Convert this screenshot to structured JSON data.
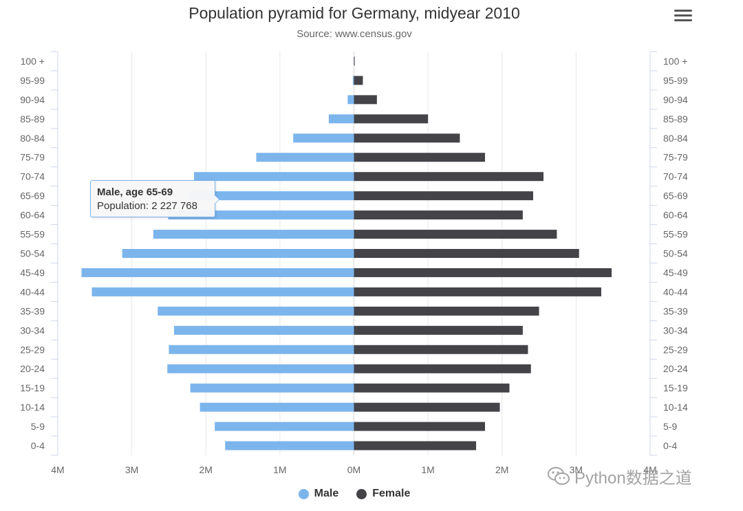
{
  "colors": {
    "male": "#7cb5ec",
    "female": "#434348",
    "grid": "#e6e6e6",
    "axis": "#ccd6eb",
    "label": "#666666"
  },
  "legend": {
    "male": "Male",
    "female": "Female"
  },
  "tooltip": {
    "title": "Male, age 65-69",
    "body": "Population: 2 227 768"
  },
  "watermark": {
    "text": "Python数据之道"
  },
  "chart_data": {
    "type": "bar",
    "title": "Population pyramid for Germany, midyear 2010",
    "subtitle": "Source: www.census.gov",
    "categories": [
      "0-4",
      "5-9",
      "10-14",
      "15-19",
      "20-24",
      "25-29",
      "30-34",
      "35-39",
      "40-44",
      "45-49",
      "50-54",
      "55-59",
      "60-64",
      "65-69",
      "70-74",
      "75-79",
      "80-84",
      "85-89",
      "90-94",
      "95-99",
      "100 +"
    ],
    "xticks": [
      "4M",
      "3M",
      "2M",
      "1M",
      "0M",
      "1M",
      "2M",
      "3M",
      "4M"
    ],
    "xlim": [
      -4000000,
      4000000
    ],
    "grid": true,
    "legend_position": "bottom-center",
    "series": [
      {
        "name": "Male",
        "values": [
          -1740000,
          -1880000,
          -2080000,
          -2210000,
          -2520000,
          -2500000,
          -2430000,
          -2650000,
          -3540000,
          -3680000,
          -3130000,
          -2710000,
          -2510000,
          -2227768,
          -2160000,
          -1320000,
          -820000,
          -340000,
          -85000,
          -15000,
          -1000
        ]
      },
      {
        "name": "Female",
        "values": [
          1650000,
          1770000,
          1970000,
          2100000,
          2390000,
          2350000,
          2280000,
          2500000,
          3340000,
          3480000,
          3040000,
          2740000,
          2280000,
          2420000,
          2560000,
          1770000,
          1430000,
          1000000,
          310000,
          120000,
          10000
        ]
      }
    ]
  }
}
